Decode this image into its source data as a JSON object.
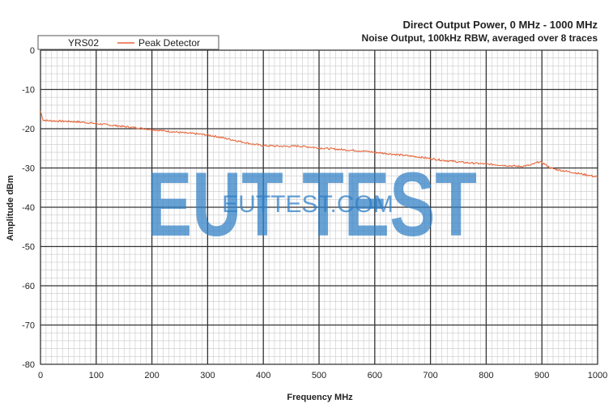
{
  "chart_data": {
    "type": "line",
    "title": "Direct Output Power, 0 MHz - 1000 MHz",
    "subtitle": "Noise Output, 100kHz RBW, averaged over 8 traces",
    "xlabel": "Frequency MHz",
    "ylabel": "Amplitude dBm",
    "xlim": [
      0,
      1000
    ],
    "ylim": [
      -80,
      0
    ],
    "x_ticks": [
      "0",
      "100",
      "200",
      "300",
      "400",
      "500",
      "600",
      "700",
      "800",
      "900",
      "1000"
    ],
    "y_ticks": [
      "0",
      "-10",
      "-20",
      "-30",
      "-40",
      "-50",
      "-60",
      "-70",
      "-80"
    ],
    "grid": true,
    "legend_position": "top-left",
    "legend": [
      {
        "label": "YRS02",
        "color": "#ffffff"
      },
      {
        "label": "Peak Detector",
        "color": "#e8663a"
      }
    ],
    "series": [
      {
        "name": "Peak Detector",
        "color": "#e8663a",
        "x": [
          0,
          2,
          5,
          10,
          20,
          40,
          60,
          80,
          100,
          120,
          140,
          160,
          180,
          200,
          220,
          240,
          260,
          280,
          300,
          320,
          340,
          360,
          380,
          400,
          420,
          440,
          460,
          480,
          500,
          520,
          540,
          560,
          580,
          600,
          620,
          640,
          660,
          680,
          700,
          720,
          740,
          760,
          780,
          800,
          820,
          840,
          860,
          880,
          895,
          905,
          915,
          930,
          950,
          970,
          985,
          1000
        ],
        "y": [
          -15.5,
          -16.5,
          -17.8,
          -17.9,
          -18.0,
          -18.1,
          -18.2,
          -18.4,
          -18.7,
          -19.0,
          -19.3,
          -19.6,
          -19.9,
          -20.2,
          -20.5,
          -20.8,
          -21.1,
          -21.3,
          -21.6,
          -22.1,
          -22.7,
          -23.3,
          -23.9,
          -24.3,
          -24.4,
          -24.5,
          -24.4,
          -24.6,
          -24.9,
          -25.1,
          -25.3,
          -25.5,
          -25.7,
          -26.0,
          -26.3,
          -26.6,
          -26.9,
          -27.2,
          -27.6,
          -28.0,
          -28.3,
          -28.6,
          -28.8,
          -29.0,
          -29.2,
          -29.4,
          -29.6,
          -29.3,
          -28.4,
          -29.0,
          -30.0,
          -30.5,
          -31.0,
          -31.5,
          -31.9,
          -32.3
        ]
      }
    ]
  },
  "watermark": {
    "big": "EUT TEST",
    "small": "EUTTEST.COM"
  }
}
